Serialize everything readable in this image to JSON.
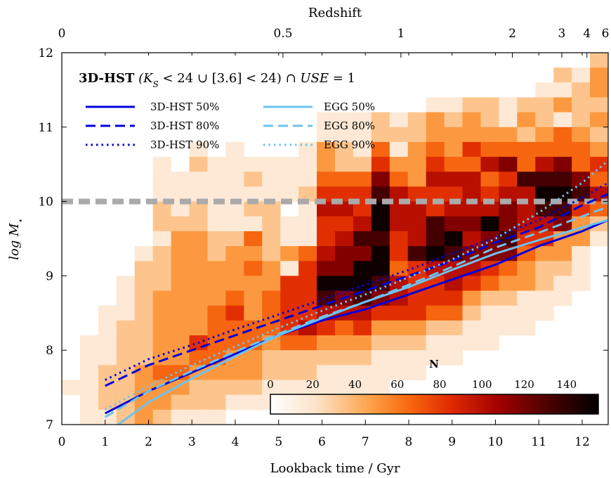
{
  "chart_data": {
    "type": "heatmap",
    "xlabel": "Lookback time / Gyr",
    "ylabel": "log M",
    "ylabel_subscript": "⋆",
    "top_xlabel": "Redshift",
    "xlim": [
      0,
      12.6
    ],
    "ylim": [
      7,
      12
    ],
    "x_ticks": [
      0,
      1,
      2,
      3,
      4,
      5,
      6,
      7,
      8,
      9,
      10,
      11,
      12
    ],
    "y_ticks": [
      7,
      8,
      9,
      10,
      11,
      12
    ],
    "top_ticks": [
      {
        "label": "0",
        "t": 0
      },
      {
        "label": "0.5",
        "t": 5.1
      },
      {
        "label": "1",
        "t": 7.82
      },
      {
        "label": "2",
        "t": 10.39
      },
      {
        "label": "3",
        "t": 11.53
      },
      {
        "label": "4",
        "t": 12.11
      },
      {
        "label": "6",
        "t": 12.6
      }
    ],
    "reference_line": {
      "y": 10.0,
      "color": "#aaaaaa"
    },
    "legend": {
      "title_bold": "3D-HST",
      "title_rest_1": " (K",
      "title_sub_1": "S",
      "title_rest_2": " < 24 ∪ [3.6] < 24) ∩ ",
      "title_ital": "USE",
      "title_rest_3": " = 1",
      "placement": "top-left"
    },
    "series": [
      {
        "name": "3D-HST 50%",
        "color": "#0000dd",
        "dash": "solid",
        "points": [
          [
            1.0,
            7.15
          ],
          [
            2.0,
            7.45
          ],
          [
            3.0,
            7.7
          ],
          [
            4.0,
            7.95
          ],
          [
            5.0,
            8.2
          ],
          [
            6.0,
            8.4
          ],
          [
            7.0,
            8.55
          ],
          [
            8.0,
            8.75
          ],
          [
            9.0,
            8.95
          ],
          [
            10.0,
            9.15
          ],
          [
            11.0,
            9.4
          ],
          [
            12.0,
            9.6
          ],
          [
            12.6,
            9.75
          ]
        ]
      },
      {
        "name": "3D-HST 80%",
        "color": "#0000dd",
        "dash": "dashed",
        "points": [
          [
            1.0,
            7.52
          ],
          [
            2.0,
            7.8
          ],
          [
            3.0,
            8.0
          ],
          [
            4.0,
            8.2
          ],
          [
            5.0,
            8.4
          ],
          [
            6.0,
            8.6
          ],
          [
            7.0,
            8.8
          ],
          [
            8.0,
            9.0
          ],
          [
            9.0,
            9.2
          ],
          [
            10.0,
            9.45
          ],
          [
            11.0,
            9.65
          ],
          [
            12.0,
            9.95
          ],
          [
            12.6,
            10.1
          ]
        ]
      },
      {
        "name": "3D-HST 90%",
        "color": "#0000dd",
        "dash": "dotted",
        "points": [
          [
            1.0,
            7.6
          ],
          [
            2.0,
            7.88
          ],
          [
            3.0,
            8.07
          ],
          [
            4.0,
            8.28
          ],
          [
            5.0,
            8.48
          ],
          [
            6.0,
            8.68
          ],
          [
            7.0,
            8.88
          ],
          [
            8.0,
            9.08
          ],
          [
            9.0,
            9.3
          ],
          [
            10.0,
            9.52
          ],
          [
            11.0,
            9.75
          ],
          [
            12.0,
            10.05
          ],
          [
            12.6,
            10.25
          ]
        ]
      },
      {
        "name": "EGG 50%",
        "color": "#6cc3f0",
        "dash": "solid",
        "points": [
          [
            1.3,
            7.0
          ],
          [
            2.0,
            7.3
          ],
          [
            3.0,
            7.62
          ],
          [
            4.0,
            7.92
          ],
          [
            5.0,
            8.2
          ],
          [
            6.0,
            8.43
          ],
          [
            7.0,
            8.65
          ],
          [
            8.0,
            8.85
          ],
          [
            9.0,
            9.08
          ],
          [
            10.0,
            9.3
          ],
          [
            11.0,
            9.48
          ],
          [
            12.0,
            9.65
          ],
          [
            12.6,
            9.75
          ]
        ]
      },
      {
        "name": "EGG 80%",
        "color": "#6cc3f0",
        "dash": "dashed",
        "points": [
          [
            1.0,
            7.1
          ],
          [
            2.0,
            7.45
          ],
          [
            3.0,
            7.72
          ],
          [
            4.0,
            7.98
          ],
          [
            5.0,
            8.22
          ],
          [
            6.0,
            8.45
          ],
          [
            7.0,
            8.65
          ],
          [
            8.0,
            8.88
          ],
          [
            9.0,
            9.12
          ],
          [
            10.0,
            9.38
          ],
          [
            11.0,
            9.58
          ],
          [
            12.0,
            9.8
          ],
          [
            12.6,
            9.93
          ]
        ]
      },
      {
        "name": "EGG 90%",
        "color": "#6cc3f0",
        "dash": "dotted",
        "points": [
          [
            1.0,
            7.2
          ],
          [
            2.0,
            7.52
          ],
          [
            3.0,
            7.8
          ],
          [
            4.0,
            8.05
          ],
          [
            5.0,
            8.3
          ],
          [
            6.0,
            8.53
          ],
          [
            7.0,
            8.75
          ],
          [
            8.0,
            8.98
          ],
          [
            9.0,
            9.22
          ],
          [
            10.0,
            9.5
          ],
          [
            11.0,
            9.85
          ],
          [
            12.0,
            10.25
          ],
          [
            12.6,
            10.55
          ]
        ]
      }
    ],
    "colorbar": {
      "title": "N",
      "ticks": [
        0,
        20,
        40,
        60,
        80,
        100,
        120,
        140
      ],
      "vmin": 0,
      "vmax": 155
    },
    "heatmap": {
      "x_start": 0,
      "x_step": 0.42,
      "y_start": 7.0,
      "y_step": 0.2,
      "rows_from_top": [
        "000000000000000000000000000002",
        "000000000000000000000000000213",
        "000000000000000000000000001123",
        "000000000000000000001122122322",
        "000000000000001112123232132123",
        "000000000000001112223333323432",
        "000000010100013214134354444443",
        "000001021111113225335446746745",
        "000001111121114447436664588874",
        "000001111111125558655565669986",
        "000002121122016659665666768854",
        "000002221112115569668779766732",
        "000001332242115688568967855331",
        "000012332332346779589877743310",
        "000022333343157799456665432210",
        "000122333333559998655654332110",
        "000123333434558787655532211100",
        "001123334534556665554421111000",
        "001223334444565453332211110000",
        "011223354443443332221111000000",
        "011223344332222221111100000000",
        "012234433332221111110000000000",
        "112233322221111111000000000000",
        "012233222111110000000000000000",
        "011232111000000000000000000000"
      ]
    }
  }
}
